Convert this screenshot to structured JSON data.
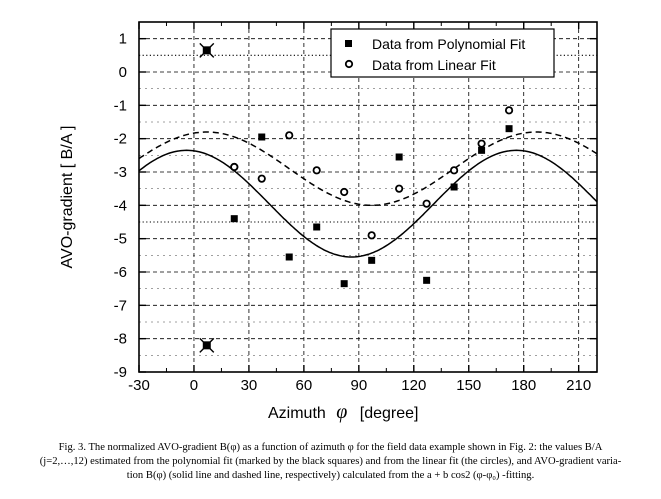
{
  "chart_data": {
    "type": "scatter",
    "xlabel_prefix": "Azimuth",
    "xlabel_symbol": "φ",
    "xlabel_unit": "[degree]",
    "ylabel": "AVO-gradient   [ B/A ]",
    "xlim": [
      -30,
      220
    ],
    "ylim": [
      -9,
      1.5
    ],
    "xticks": [
      -30,
      0,
      30,
      60,
      90,
      120,
      150,
      180,
      210
    ],
    "yticks": [
      -9,
      -8,
      -7,
      -6,
      -5,
      -4,
      -3,
      -2,
      -1,
      0,
      1
    ],
    "legend_position": "top-right",
    "series": [
      {
        "name": "Data from Polynomial Fit",
        "marker": "square",
        "x": [
          22,
          37,
          52,
          67,
          82,
          97,
          112,
          127,
          142,
          157,
          172
        ],
        "y": [
          -4.4,
          -1.95,
          -5.55,
          -4.65,
          -6.35,
          -5.65,
          -2.55,
          -6.25,
          -3.45,
          -2.35,
          -1.7
        ]
      },
      {
        "name": "Data from Linear Fit",
        "marker": "circle",
        "x": [
          22,
          22,
          37,
          52,
          67,
          82,
          97,
          112,
          127,
          142,
          157,
          172
        ],
        "y": [
          -2.85,
          -2.85,
          -3.2,
          -1.9,
          -2.95,
          -3.6,
          -4.9,
          -3.5,
          -3.95,
          -2.95,
          -2.15,
          -1.15
        ]
      },
      {
        "name": "B(φ) from polynomial fit",
        "style": "solid",
        "model": {
          "a": -3.95,
          "b": 1.6,
          "phi0": 176
        }
      },
      {
        "name": "B(φ) from linear fit",
        "style": "dashed",
        "model": {
          "a": -2.9,
          "b": 1.1,
          "phi0": 187
        }
      }
    ],
    "outliers": [
      {
        "x": 7,
        "y": 0.65
      },
      {
        "x": 7,
        "y": -8.2
      }
    ],
    "dotted_hlines": [
      0.5,
      -4.5
    ],
    "grid": "dashed"
  },
  "caption": {
    "line1": "Fig. 3. The normalized AVO-gradient B(φ)  as a function of azimuth φ for the field data example shown in Fig. 2: the values B/A",
    "line2": "(j=2,…,12) estimated from the polynomial fit (marked by the black squares) and from the linear fit (the circles), and AVO-gradient varia-",
    "line3": "tion B(φ) (solid line and dashed line, respectively) calculated from the a + b cos2 (φ-φ₀) -fitting."
  }
}
